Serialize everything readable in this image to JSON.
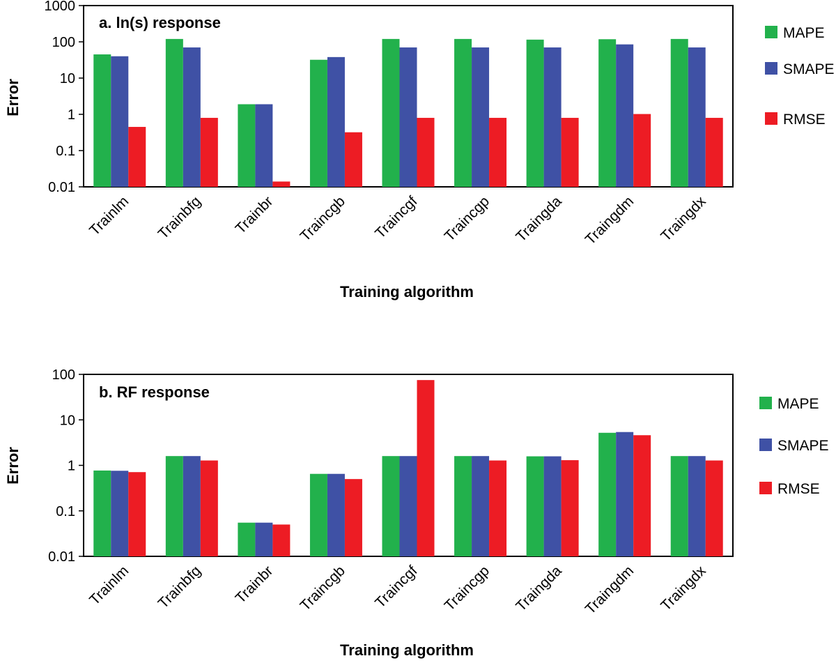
{
  "chart_data": [
    {
      "type": "bar",
      "title": "a. ln(s) response",
      "xlabel": "Training algorithm",
      "ylabel": "Error",
      "yscale": "log",
      "ylim": [
        0.01,
        1000
      ],
      "yticks": [
        "0.01",
        "0.1",
        "1",
        "10",
        "100",
        "1000"
      ],
      "legend_position": "right",
      "grid": false,
      "categories": [
        "Trainlm",
        "Trainbfg",
        "Trainbr",
        "Traincgb",
        "Traincgf",
        "Traincgp",
        "Traingda",
        "Traingdm",
        "Traingdx"
      ],
      "series": [
        {
          "name": "MAPE",
          "color": "#22b14c",
          "values": [
            45,
            120,
            1.9,
            32,
            120,
            120,
            115,
            118,
            120
          ]
        },
        {
          "name": "SMAPE",
          "color": "#3f51a5",
          "values": [
            40,
            70,
            1.9,
            38,
            70,
            70,
            70,
            85,
            70
          ]
        },
        {
          "name": "RMSE",
          "color": "#ed1c24",
          "values": [
            0.45,
            0.8,
            0.014,
            0.32,
            0.8,
            0.8,
            0.8,
            1.02,
            0.8
          ]
        }
      ]
    },
    {
      "type": "bar",
      "title": "b.  RF response",
      "xlabel": "Training algorithm",
      "ylabel": "Error",
      "yscale": "log",
      "ylim": [
        0.01,
        100
      ],
      "yticks": [
        "0.01",
        "0.1",
        "1",
        "10",
        "100"
      ],
      "legend_position": "right",
      "grid": false,
      "categories": [
        "Trainlm",
        "Trainbfg",
        "Trainbr",
        "Traincgb",
        "Traincgf",
        "Traincgp",
        "Traingda",
        "Traingdm",
        "Traingdx"
      ],
      "series": [
        {
          "name": "MAPE",
          "color": "#22b14c",
          "values": [
            0.77,
            1.6,
            0.055,
            0.65,
            1.6,
            1.6,
            1.58,
            5.2,
            1.6
          ]
        },
        {
          "name": "SMAPE",
          "color": "#3f51a5",
          "values": [
            0.76,
            1.6,
            0.055,
            0.65,
            1.6,
            1.6,
            1.58,
            5.4,
            1.6
          ]
        },
        {
          "name": "RMSE",
          "color": "#ed1c24",
          "values": [
            0.71,
            1.28,
            0.05,
            0.5,
            75,
            1.28,
            1.3,
            4.6,
            1.28
          ]
        }
      ]
    }
  ]
}
